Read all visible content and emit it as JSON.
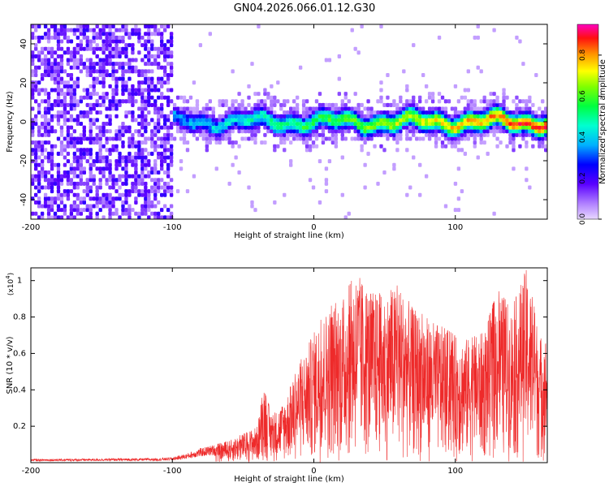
{
  "title": "GN04.2026.066.01.12.G30",
  "colors": {
    "snr_line": "#ee2a2a",
    "spec_low": "#7a26ff",
    "spec_mid": "#00d8c8",
    "spec_high": "#ff1010"
  },
  "chart_data": [
    {
      "type": "heatmap",
      "name": "spectrogram",
      "xlabel": "Height of straight line (km)",
      "ylabel": "Frequency (Hz)",
      "xlim": [
        -200,
        165
      ],
      "ylim": [
        -50,
        50
      ],
      "xticks": [
        -200,
        -100,
        0,
        100
      ],
      "yticks": [
        -40,
        -20,
        0,
        20,
        40
      ],
      "noise_region_x": [
        -200,
        -100
      ],
      "signal_band_center_hz": 0,
      "colorbar": {
        "label": "Normalized spectral amplitude",
        "range": [
          0.0,
          0.95
        ],
        "ticks": [
          0.0,
          0.2,
          0.4,
          0.6,
          0.8
        ]
      }
    },
    {
      "type": "line",
      "name": "snr",
      "xlabel": "Height of straight line (km)",
      "ylabel": "SNR (10 * v/v)",
      "multiplier": "(x10",
      "multiplier_exp": "4",
      "xlim": [
        -200,
        165
      ],
      "ylim": [
        0,
        1.07
      ],
      "xticks": [
        -200,
        -100,
        0,
        100
      ],
      "yticks": [
        0.2,
        0.4,
        0.6,
        0.8,
        1.0
      ],
      "envelope": {
        "x": [
          -200,
          -110,
          -100,
          -90,
          -80,
          -60,
          -40,
          -35,
          -30,
          -20,
          -10,
          0,
          10,
          20,
          30,
          40,
          50,
          60,
          70,
          80,
          90,
          100,
          110,
          120,
          130,
          140,
          150,
          160,
          165
        ],
        "y": [
          0.02,
          0.025,
          0.03,
          0.05,
          0.08,
          0.12,
          0.2,
          0.45,
          0.25,
          0.35,
          0.55,
          0.72,
          0.85,
          0.9,
          1.05,
          0.95,
          0.92,
          0.98,
          0.85,
          0.8,
          0.75,
          0.7,
          0.68,
          0.72,
          0.95,
          0.85,
          1.07,
          0.7,
          0.7
        ]
      }
    }
  ]
}
